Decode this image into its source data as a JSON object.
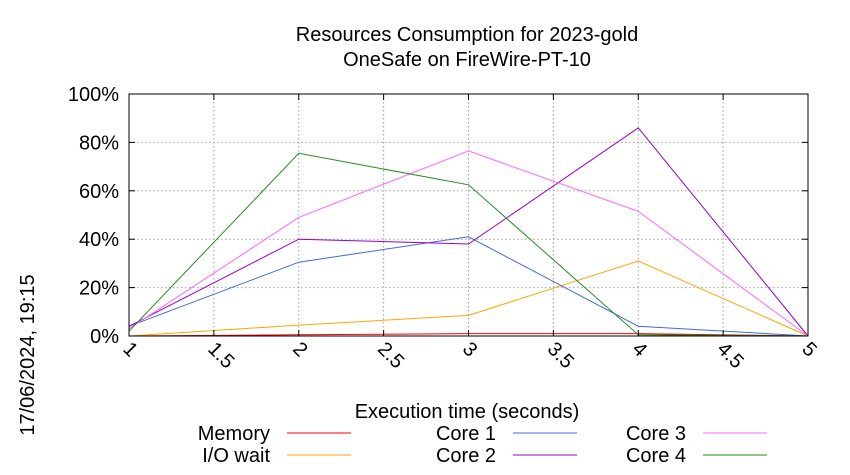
{
  "timestamp": "17/06/2024, 19:15",
  "chart_data": {
    "type": "line",
    "title": "Resources Consumption for 2023-gold",
    "subtitle": "OneSafe on FireWire-PT-10",
    "xlabel": "Execution time (seconds)",
    "ylabel": "",
    "xlim": [
      1,
      5
    ],
    "ylim": [
      0,
      100
    ],
    "x_ticks": [
      "1",
      "1.5",
      "2",
      "2.5",
      "3",
      "3.5",
      "4",
      "4.5",
      "5"
    ],
    "y_ticks": [
      "0%",
      "20%",
      "40%",
      "60%",
      "80%",
      "100%"
    ],
    "grid": true,
    "legend_position": "bottom",
    "x": [
      1,
      2,
      3,
      4,
      5
    ],
    "series": [
      {
        "name": "Memory",
        "color": "#ff0000",
        "values": [
          0,
          0.5,
          1,
          1,
          0
        ]
      },
      {
        "name": "I/O wait",
        "color": "#ffa500",
        "values": [
          0,
          4.5,
          8.5,
          31,
          0
        ]
      },
      {
        "name": "Core 1",
        "color": "#4169e1",
        "values": [
          4,
          30.5,
          41,
          4,
          0
        ]
      },
      {
        "name": "Core 2",
        "color": "#9400d3",
        "values": [
          4,
          40,
          38,
          86,
          0
        ]
      },
      {
        "name": "Core 3",
        "color": "#ff66ff",
        "values": [
          3,
          49,
          76.5,
          51.5,
          0
        ]
      },
      {
        "name": "Core 4",
        "color": "#228b22",
        "values": [
          2,
          75.5,
          62.5,
          0.5,
          0
        ]
      }
    ]
  }
}
